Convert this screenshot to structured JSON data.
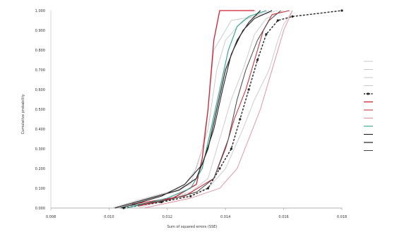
{
  "chart_data": {
    "type": "line",
    "title": "",
    "xlabel": "Sum of squared errors (SSE)",
    "ylabel": "Cumulative probability",
    "grid": false,
    "legend_position": "right",
    "xlim": [
      0.008,
      0.018
    ],
    "ylim": [
      0.0,
      1.0
    ],
    "x_ticks": [
      "0.008",
      "0.010",
      "0.012",
      "0.014",
      "0.016",
      "0.018"
    ],
    "y_ticks": [
      "0.000",
      "0.100",
      "0.200",
      "0.300",
      "0.400",
      "0.500",
      "0.600",
      "0.700",
      "0.800",
      "0.900",
      "1.000"
    ],
    "series": [
      {
        "color": "#c8c8c8",
        "dash": "",
        "width": 0.9,
        "marker": false,
        "points": [
          [
            0.0101,
            0.0
          ],
          [
            0.011,
            0.04
          ],
          [
            0.012,
            0.08
          ],
          [
            0.0128,
            0.12
          ],
          [
            0.0132,
            0.3
          ],
          [
            0.0134,
            0.5
          ],
          [
            0.0136,
            0.8
          ],
          [
            0.0142,
            0.95
          ],
          [
            0.015,
            0.97
          ],
          [
            0.0158,
            1.0
          ]
        ]
      },
      {
        "color": "#c8c8c8",
        "dash": "",
        "width": 0.9,
        "marker": false,
        "points": [
          [
            0.0103,
            0.0
          ],
          [
            0.0115,
            0.05
          ],
          [
            0.0125,
            0.1
          ],
          [
            0.013,
            0.2
          ],
          [
            0.0134,
            0.4
          ],
          [
            0.0137,
            0.7
          ],
          [
            0.014,
            0.85
          ],
          [
            0.0146,
            0.95
          ],
          [
            0.0155,
            1.0
          ]
        ]
      },
      {
        "color": "#c8c8c8",
        "dash": "",
        "width": 0.9,
        "marker": false,
        "points": [
          [
            0.0106,
            0.0
          ],
          [
            0.0118,
            0.04
          ],
          [
            0.0128,
            0.08
          ],
          [
            0.0134,
            0.15
          ],
          [
            0.0138,
            0.35
          ],
          [
            0.0142,
            0.55
          ],
          [
            0.0146,
            0.7
          ],
          [
            0.015,
            0.88
          ],
          [
            0.0154,
            0.96
          ],
          [
            0.016,
            1.0
          ]
        ]
      },
      {
        "color": "#c8c8c8",
        "dash": "",
        "width": 0.9,
        "marker": false,
        "points": [
          [
            0.011,
            0.0
          ],
          [
            0.0122,
            0.05
          ],
          [
            0.0134,
            0.1
          ],
          [
            0.014,
            0.2
          ],
          [
            0.0146,
            0.4
          ],
          [
            0.015,
            0.55
          ],
          [
            0.0155,
            0.7
          ],
          [
            0.0158,
            0.85
          ],
          [
            0.016,
            0.93
          ],
          [
            0.0163,
            1.0
          ]
        ]
      },
      {
        "color": "#222222",
        "dash": "3,2",
        "width": 1.4,
        "marker": true,
        "points": [
          [
            0.0105,
            0.0
          ],
          [
            0.0118,
            0.03
          ],
          [
            0.0128,
            0.06
          ],
          [
            0.0134,
            0.1
          ],
          [
            0.0138,
            0.2
          ],
          [
            0.0142,
            0.3
          ],
          [
            0.0145,
            0.45
          ],
          [
            0.0148,
            0.6
          ],
          [
            0.0151,
            0.75
          ],
          [
            0.0154,
            0.88
          ],
          [
            0.0158,
            0.95
          ],
          [
            0.0163,
            0.97
          ],
          [
            0.018,
            1.0
          ]
        ]
      },
      {
        "color": "#cc2233",
        "dash": "",
        "width": 1.3,
        "marker": false,
        "points": [
          [
            0.011,
            0.01
          ],
          [
            0.0122,
            0.05
          ],
          [
            0.013,
            0.12
          ],
          [
            0.0132,
            0.25
          ],
          [
            0.0134,
            0.5
          ],
          [
            0.0136,
            0.85
          ],
          [
            0.0138,
            1.0
          ],
          [
            0.015,
            1.0
          ]
        ]
      },
      {
        "color": "#cc2233",
        "dash": "",
        "width": 1.0,
        "marker": false,
        "points": [
          [
            0.0108,
            0.02
          ],
          [
            0.0126,
            0.06
          ],
          [
            0.0136,
            0.15
          ],
          [
            0.014,
            0.3
          ],
          [
            0.0143,
            0.45
          ],
          [
            0.0147,
            0.6
          ],
          [
            0.015,
            0.75
          ],
          [
            0.0153,
            0.9
          ],
          [
            0.0156,
            0.98
          ],
          [
            0.0162,
            1.0
          ]
        ]
      },
      {
        "color": "#e08a96",
        "dash": "",
        "width": 0.9,
        "marker": false,
        "points": [
          [
            0.0112,
            0.0
          ],
          [
            0.0128,
            0.05
          ],
          [
            0.0138,
            0.1
          ],
          [
            0.0144,
            0.2
          ],
          [
            0.0148,
            0.35
          ],
          [
            0.0152,
            0.5
          ],
          [
            0.0155,
            0.65
          ],
          [
            0.0158,
            0.8
          ],
          [
            0.016,
            0.9
          ],
          [
            0.0163,
            1.0
          ]
        ]
      },
      {
        "color": "#2aa390",
        "dash": "",
        "width": 1.1,
        "marker": false,
        "points": [
          [
            0.0106,
            0.0
          ],
          [
            0.012,
            0.05
          ],
          [
            0.0128,
            0.1
          ],
          [
            0.0132,
            0.2
          ],
          [
            0.0135,
            0.4
          ],
          [
            0.0138,
            0.6
          ],
          [
            0.0141,
            0.8
          ],
          [
            0.0144,
            0.92
          ],
          [
            0.0148,
            0.97
          ],
          [
            0.0154,
            1.0
          ]
        ]
      },
      {
        "color": "#111111",
        "dash": "",
        "width": 1.0,
        "marker": false,
        "points": [
          [
            0.0104,
            0.0
          ],
          [
            0.0118,
            0.06
          ],
          [
            0.0126,
            0.12
          ],
          [
            0.0132,
            0.22
          ],
          [
            0.0136,
            0.4
          ],
          [
            0.0139,
            0.6
          ],
          [
            0.0142,
            0.78
          ],
          [
            0.0146,
            0.9
          ],
          [
            0.015,
            0.96
          ],
          [
            0.0156,
            1.0
          ]
        ]
      },
      {
        "color": "#333333",
        "dash": "",
        "width": 1.3,
        "marker": false,
        "points": [
          [
            0.0102,
            0.0
          ],
          [
            0.0114,
            0.05
          ],
          [
            0.0124,
            0.09
          ],
          [
            0.013,
            0.15
          ],
          [
            0.0134,
            0.3
          ],
          [
            0.0137,
            0.5
          ],
          [
            0.014,
            0.7
          ],
          [
            0.0144,
            0.85
          ],
          [
            0.0148,
            0.94
          ],
          [
            0.0152,
            1.0
          ]
        ]
      },
      {
        "color": "#444444",
        "dash": "",
        "width": 1.0,
        "marker": false,
        "points": [
          [
            0.0106,
            0.01
          ],
          [
            0.012,
            0.04
          ],
          [
            0.013,
            0.08
          ],
          [
            0.0136,
            0.15
          ],
          [
            0.0141,
            0.35
          ],
          [
            0.0144,
            0.55
          ],
          [
            0.0147,
            0.7
          ],
          [
            0.0151,
            0.85
          ],
          [
            0.0155,
            0.95
          ],
          [
            0.0159,
            1.0
          ]
        ]
      }
    ]
  }
}
